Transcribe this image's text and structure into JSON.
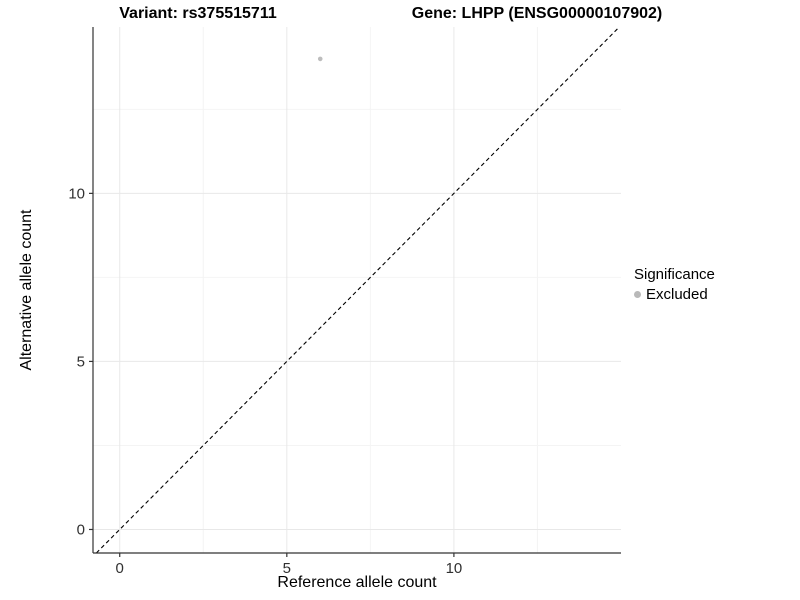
{
  "titles": {
    "variant": "Variant: rs375515711",
    "gene": "Gene: LHPP (ENSG00000107902)"
  },
  "legend": {
    "title": "Significance",
    "position": "right",
    "items": [
      {
        "label": "Excluded",
        "color": "#b9b9b9"
      }
    ]
  },
  "chart_data": {
    "type": "scatter",
    "title_left": "Variant: rs375515711",
    "title_right": "Gene: LHPP (ENSG00000107902)",
    "xlabel": "Reference allele count",
    "ylabel": "Alternative allele count",
    "xlim": [
      -0.8,
      15.0
    ],
    "ylim": [
      -0.7,
      14.95
    ],
    "x_ticks": [
      0,
      5,
      10
    ],
    "y_ticks": [
      0,
      5,
      10
    ],
    "x_minor_ticks": [
      2.5,
      7.5,
      12.5
    ],
    "y_minor_ticks": [
      2.5,
      7.5,
      12.5
    ],
    "grid": true,
    "series": [
      {
        "name": "Excluded",
        "color": "#bdbdbd",
        "points": [
          {
            "x": 6,
            "y": 14
          }
        ]
      }
    ],
    "reference_line": {
      "type": "identity",
      "slope": 1,
      "intercept": 0,
      "style": "dashed",
      "color": "#000000"
    },
    "colors": {
      "background": "#ffffff",
      "axis_line": "#333333",
      "tick_mark": "#333333",
      "tick_label": "#303030",
      "grid_major": "#e8e8e8",
      "grid_minor": "#f4f4f4"
    }
  }
}
